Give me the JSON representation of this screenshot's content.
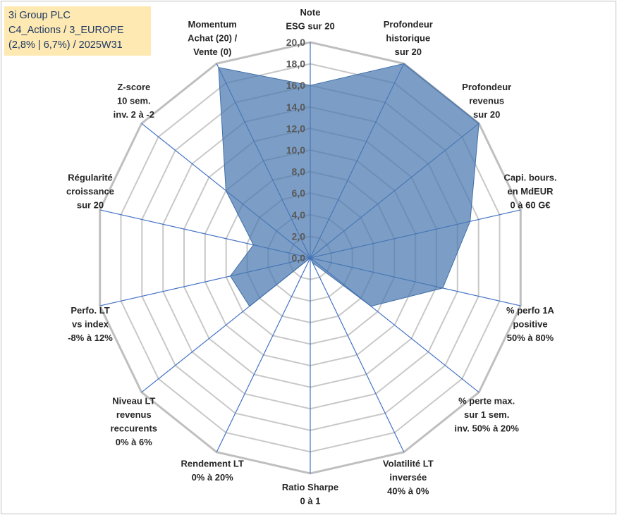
{
  "info_box": {
    "line1": "3i Group PLC",
    "line2": "C4_Actions / 3_EUROPE",
    "line3": "(2,8% | 6,7%) / 2025W31"
  },
  "chart_data": {
    "type": "radar",
    "rmin": 0,
    "rmax": 20,
    "tick_step": 2,
    "tick_labels": [
      "0,0",
      "2,0",
      "4,0",
      "6,0",
      "8,0",
      "10,0",
      "12,0",
      "14,0",
      "16,0",
      "18,0",
      "20,0"
    ],
    "grid": true,
    "categories": [
      [
        "Note",
        "ESG sur 20"
      ],
      [
        "Profondeur",
        "historique",
        "sur 20"
      ],
      [
        "Profondeur",
        "revenus",
        "sur 20"
      ],
      [
        "Capi. bours.",
        "en MdEUR",
        "0 à 60 G€"
      ],
      [
        "% perfo 1A",
        "positive",
        "50% à 80%"
      ],
      [
        "% perte max.",
        "sur 1 sem.",
        "inv. 50% à 20%"
      ],
      [
        "Volatilité LT",
        "inversée",
        "40% à 0%"
      ],
      [
        "Ratio Sharpe",
        "0 à 1"
      ],
      [
        "Rendement LT",
        "0% à 20%"
      ],
      [
        "Niveau LT",
        "revenus",
        "reccurents",
        "0% à 6%"
      ],
      [
        "Perfo. LT",
        "vs index",
        "-8% à 12%"
      ],
      [
        "Régularité",
        "croissance",
        "sur 20"
      ],
      [
        "Z-score",
        "10 sem.",
        "inv. 2 à -2"
      ],
      [
        "Momentum",
        "Achat (20) /",
        "Vente (0)"
      ]
    ],
    "series": [
      {
        "values": [
          16,
          20,
          20,
          15.2,
          12.6,
          7.2,
          0.5,
          0,
          0,
          7.2,
          7.6,
          5.4,
          10,
          19.6
        ],
        "fill": "#4a78b0",
        "fill_opacity": 0.72,
        "stroke": "#3f6fa8"
      }
    ],
    "colors": {
      "grid_ring": "#c8c8c8",
      "outer_ring": "#bfbfbf",
      "spoke": "#4472c4",
      "info_bg": "#fde9b1",
      "info_text": "#1f3864"
    }
  }
}
